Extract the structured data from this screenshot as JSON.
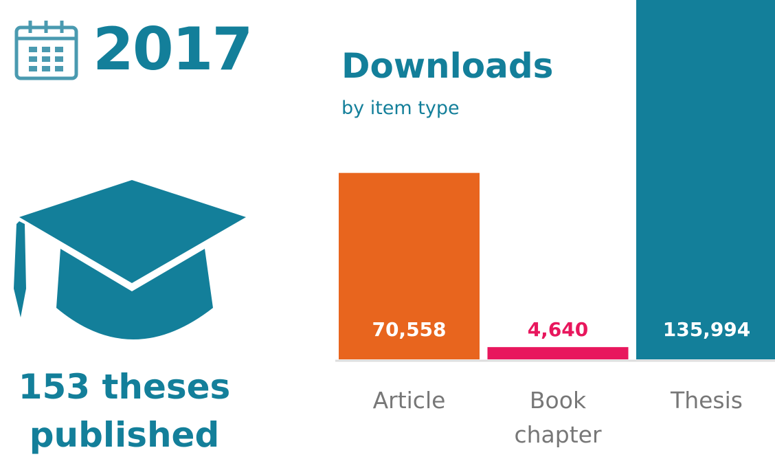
{
  "year": "2017",
  "theses": "153 theses published",
  "chart_data": {
    "type": "bar",
    "title": "Downloads",
    "subtitle": "by item type",
    "categories": [
      "Article",
      "Book chapter",
      "Thesis"
    ],
    "values": [
      70558,
      4640,
      135994
    ],
    "value_labels": [
      "70,558",
      "4,640",
      "135,994"
    ],
    "colors": [
      "#e8651e",
      "#e8175d",
      "#137f9a"
    ]
  }
}
